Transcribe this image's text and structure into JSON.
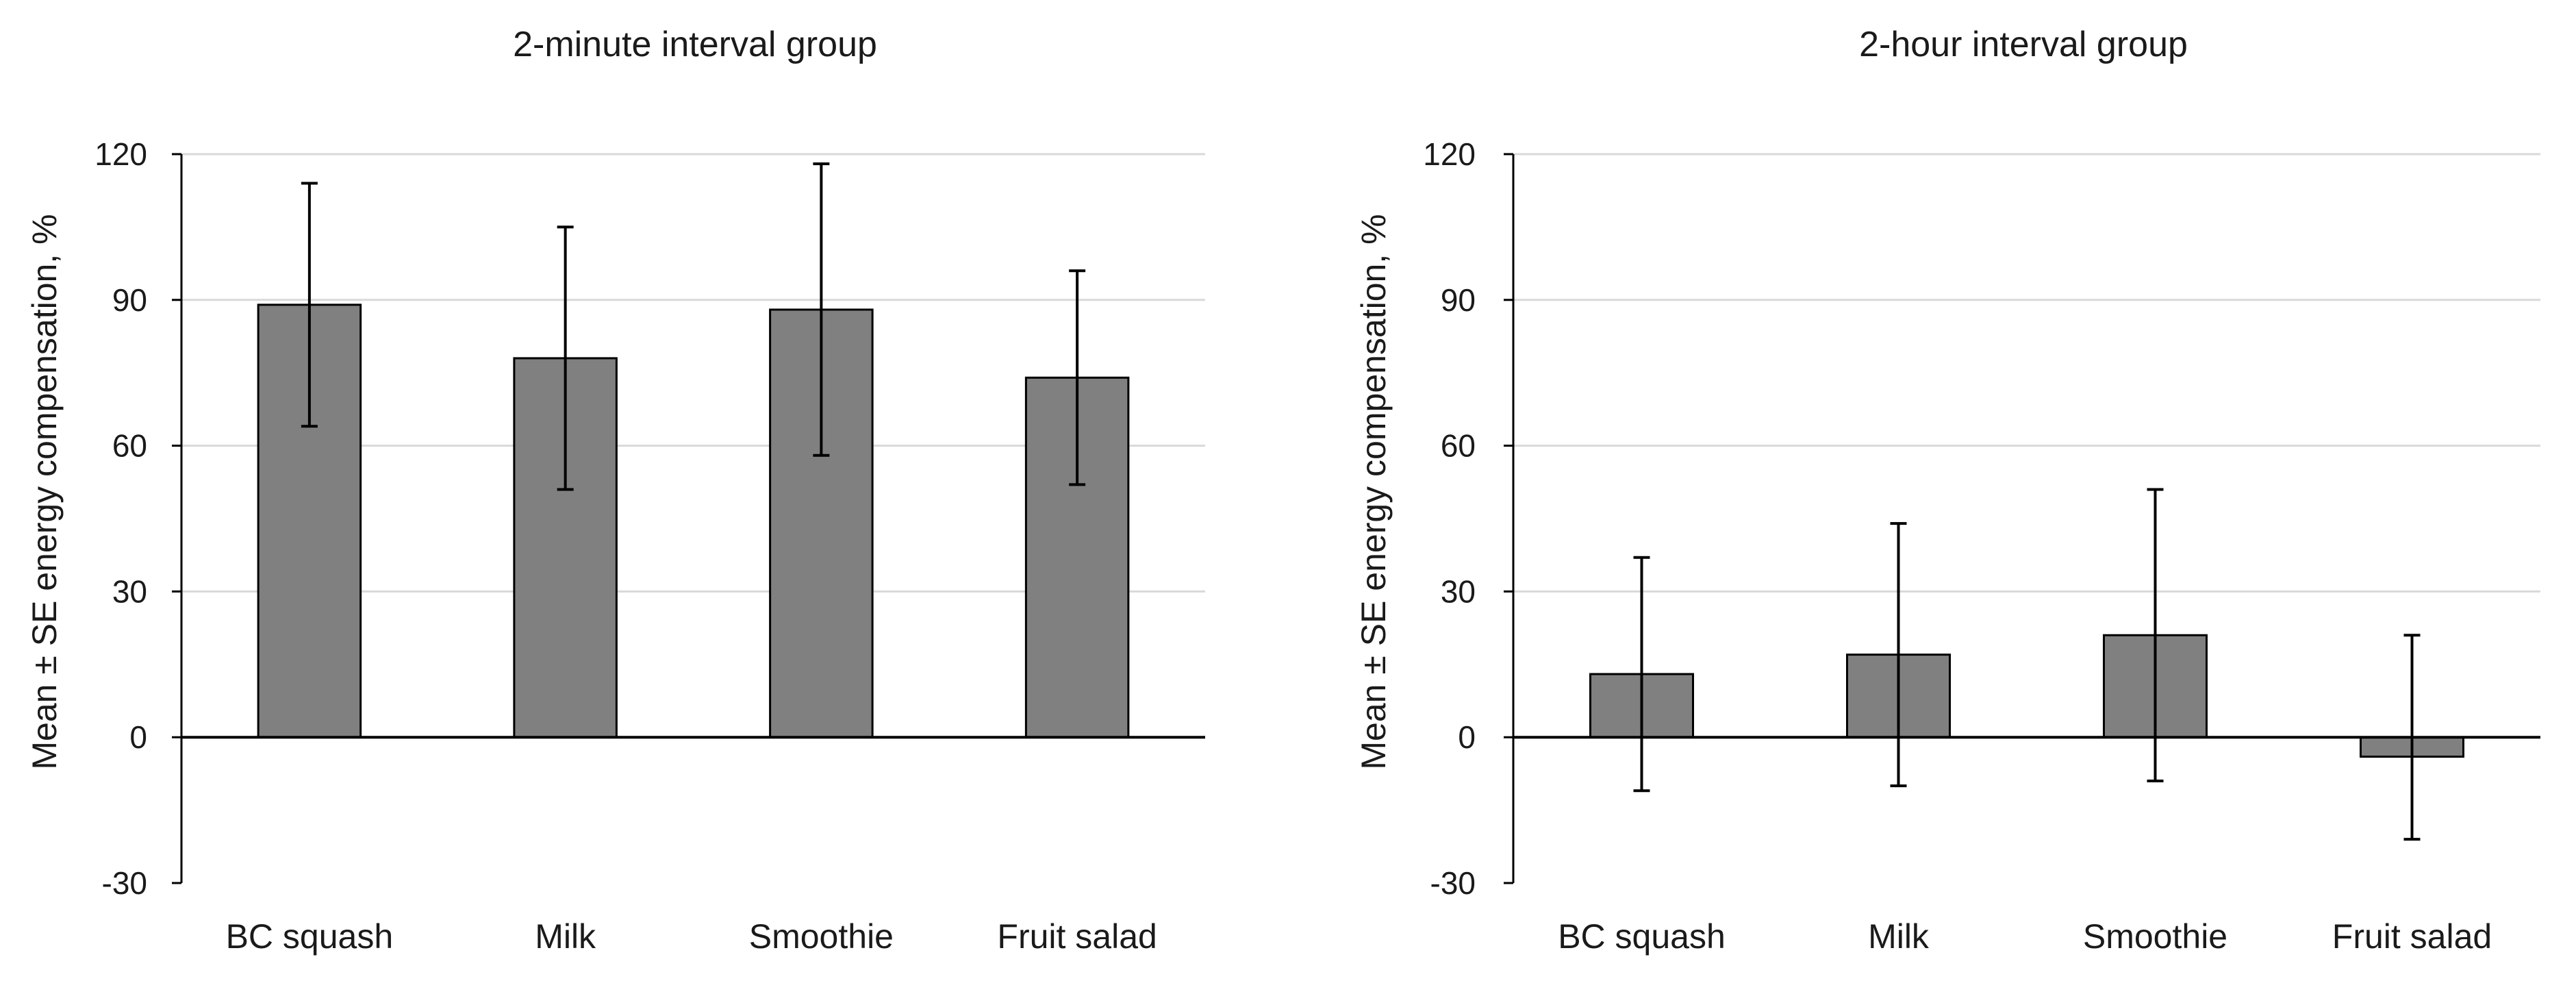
{
  "chart_data": [
    {
      "type": "bar",
      "title": "2-minute interval group",
      "xlabel": "",
      "ylabel": "Mean ± SE energy compensation, %",
      "categories": [
        "BC squash",
        "Milk",
        "Smoothie",
        "Fruit salad"
      ],
      "values": [
        89,
        78,
        88,
        74
      ],
      "error_low": [
        64,
        51,
        58,
        52
      ],
      "error_high": [
        114,
        105,
        118,
        96
      ],
      "ylim": [
        -30,
        120
      ],
      "yticks": [
        -30,
        0,
        30,
        60,
        90,
        120
      ],
      "ytick_labels": [
        "-30",
        "0",
        "30",
        "60",
        "90",
        "120"
      ],
      "grid": true,
      "bar_color": "#808080"
    },
    {
      "type": "bar",
      "title": "2-hour interval group",
      "xlabel": "",
      "ylabel": "Mean ± SE energy compensation, %",
      "categories": [
        "BC squash",
        "Milk",
        "Smoothie",
        "Fruit salad"
      ],
      "values": [
        13,
        17,
        21,
        -4
      ],
      "error_low": [
        -11,
        -10,
        -9,
        -21
      ],
      "error_high": [
        37,
        44,
        51,
        21
      ],
      "ylim": [
        -30,
        120
      ],
      "yticks": [
        -30,
        0,
        30,
        60,
        90,
        120
      ],
      "ytick_labels": [
        "-30",
        "0",
        "30",
        "60",
        "90",
        "120"
      ],
      "grid": true,
      "bar_color": "#808080"
    }
  ]
}
